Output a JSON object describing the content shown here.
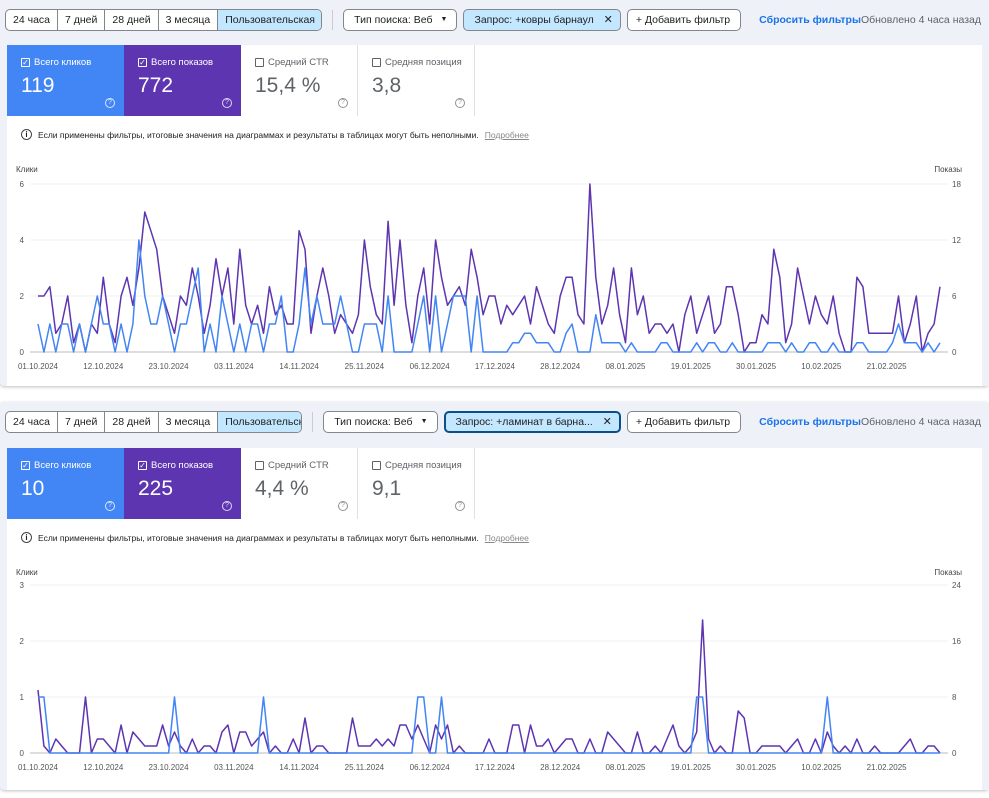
{
  "colors": {
    "clicks": "#4285f4",
    "impressions": "#5e35b1",
    "selected_chip": "#c2e7ff"
  },
  "panels": [
    {
      "date_ranges": [
        "24 часа",
        "7 дней",
        "28 дней",
        "3 месяца"
      ],
      "custom_range": "Пользовательская",
      "search_type": "Тип поиска: Веб",
      "query_filter": "Запрос: +ковры барнаул",
      "add_filter": "Добавить фильтр",
      "reset_filters": "Сбросить фильтры",
      "updated": "Обновлено 4 часа назад",
      "metrics": [
        {
          "label": "Всего кликов",
          "value": "119",
          "checked": true
        },
        {
          "label": "Всего показов",
          "value": "772",
          "checked": true
        },
        {
          "label": "Средний CTR",
          "value": "15,4 %",
          "checked": false
        },
        {
          "label": "Средняя позиция",
          "value": "3,8",
          "checked": false
        }
      ],
      "info": "Если применены фильтры, итоговые значения на диаграммах и результаты в таблицах могут быть неполными.",
      "info_link": "Подробнее",
      "chart_data": {
        "type": "line",
        "x_ticks": [
          "01.10.2024",
          "12.10.2024",
          "23.10.2024",
          "03.11.2024",
          "14.11.2024",
          "25.11.2024",
          "06.12.2024",
          "17.12.2024",
          "28.12.2024",
          "08.01.2025",
          "19.01.2025",
          "30.01.2025",
          "10.02.2025",
          "21.02.2025"
        ],
        "ylabel_left": "Клики",
        "ylabel_right": "Показы",
        "y_left_ticks": [
          0,
          2,
          4,
          6
        ],
        "y_right_ticks": [
          0,
          6,
          12,
          18
        ],
        "ylim_left": [
          0,
          6
        ],
        "ylim_right": [
          0,
          18
        ],
        "series": [
          {
            "name": "Клики",
            "axis": "left",
            "values": [
              1,
              0,
              1,
              0,
              1,
              1,
              0,
              1,
              0,
              1,
              2,
              1,
              1,
              0,
              1,
              0,
              1,
              4,
              2,
              1,
              1,
              2,
              1,
              0,
              1,
              1,
              2,
              3,
              0,
              1,
              0,
              2,
              1,
              0,
              1,
              0,
              1,
              1,
              0,
              1,
              1,
              2,
              0,
              0,
              1,
              3,
              1,
              2,
              1,
              1,
              1,
              2,
              1,
              0,
              0,
              1,
              1,
              1,
              0,
              2,
              0,
              0,
              0,
              0,
              1,
              2,
              0,
              2,
              0,
              1,
              2,
              2,
              2,
              0,
              2,
              0,
              0,
              0,
              0,
              0,
              0.33,
              0.33,
              0.67,
              0.67,
              0.33,
              0.33,
              0.33,
              0,
              0,
              0.67,
              1,
              0,
              0,
              0,
              1.33,
              0.33,
              0.33,
              0.33,
              0.33,
              0,
              0.33,
              0,
              0,
              0,
              0,
              0.33,
              0.33,
              0,
              0,
              0,
              0,
              0.33,
              0,
              0.33,
              0.33,
              0,
              0,
              0.33,
              0,
              0,
              0,
              0,
              0,
              0.33,
              0.33,
              0.33,
              0,
              0.33,
              0,
              0,
              0.33,
              0.33,
              0,
              0,
              0.33,
              0,
              0,
              0,
              0.33,
              0.33,
              0,
              0,
              0,
              0,
              0.33,
              1,
              0.33,
              0.33,
              0.33,
              0,
              0.33,
              0,
              0.33
            ]
          },
          {
            "name": "Показы",
            "axis": "right",
            "values": [
              6,
              6,
              7,
              2,
              3,
              6,
              1,
              3,
              0,
              3,
              2,
              8,
              3,
              1,
              6,
              8,
              5,
              9,
              15,
              13,
              11,
              6,
              4,
              2,
              6,
              5,
              9,
              6,
              2,
              5,
              10,
              6,
              9,
              3,
              11,
              5,
              3,
              5,
              2,
              7,
              4,
              5,
              3,
              3,
              13,
              11,
              2,
              6,
              9,
              6,
              2,
              4,
              3,
              2,
              4,
              12,
              7,
              4,
              3,
              14,
              5,
              12,
              5,
              1,
              6,
              9,
              3,
              12,
              8,
              5,
              6,
              7,
              5,
              11,
              8,
              4,
              6,
              6,
              3,
              5,
              4,
              5,
              6,
              3,
              7,
              5,
              3,
              2,
              6,
              8,
              8,
              4,
              3,
              18,
              8,
              3,
              5,
              9,
              4,
              1,
              9,
              4,
              6,
              2,
              3,
              3,
              2,
              3,
              0,
              4,
              6,
              2,
              4,
              6,
              2,
              3,
              7,
              7,
              4,
              0,
              1,
              1,
              4,
              3,
              11,
              8,
              1,
              3,
              9,
              6,
              3,
              6,
              4,
              3,
              6,
              2,
              0,
              0,
              8,
              7,
              2,
              2,
              2,
              2,
              2,
              6,
              1,
              3,
              6,
              0,
              2,
              3,
              7
            ]
          }
        ]
      }
    },
    {
      "date_ranges": [
        "24 часа",
        "7 дней",
        "28 дней",
        "3 месяца"
      ],
      "custom_range": "Пользовательская",
      "search_type": "Тип поиска: Веб",
      "query_filter": "Запрос: +ламинат в барна...",
      "add_filter": "Добавить фильтр",
      "reset_filters": "Сбросить фильтры",
      "updated": "Обновлено 4 часа назад",
      "metrics": [
        {
          "label": "Всего кликов",
          "value": "10",
          "checked": true
        },
        {
          "label": "Всего показов",
          "value": "225",
          "checked": true
        },
        {
          "label": "Средний CTR",
          "value": "4,4 %",
          "checked": false
        },
        {
          "label": "Средняя позиция",
          "value": "9,1",
          "checked": false
        }
      ],
      "info": "Если применены фильтры, итоговые значения на диаграммах и результаты в таблицах могут быть неполными.",
      "info_link": "Подробнее",
      "chart_data": {
        "type": "line",
        "x_ticks": [
          "01.10.2024",
          "12.10.2024",
          "23.10.2024",
          "03.11.2024",
          "14.11.2024",
          "25.11.2024",
          "06.12.2024",
          "17.12.2024",
          "28.12.2024",
          "08.01.2025",
          "19.01.2025",
          "30.01.2025",
          "10.02.2025",
          "21.02.2025"
        ],
        "ylabel_left": "Клики",
        "ylabel_right": "Показы",
        "y_left_ticks": [
          0,
          1,
          2,
          3
        ],
        "y_right_ticks": [
          0,
          8,
          16,
          24
        ],
        "ylim_left": [
          0,
          3
        ],
        "ylim_right": [
          0,
          24
        ],
        "series": [
          {
            "name": "Клики",
            "axis": "left",
            "values": [
              1,
              1,
              0,
              0,
              0,
              0,
              0,
              0,
              0,
              0,
              0,
              0,
              0,
              0,
              0,
              0,
              0,
              0,
              0,
              0,
              0,
              0,
              0,
              1,
              0,
              0,
              0,
              0,
              0,
              0,
              0,
              0,
              0,
              0,
              0,
              0,
              0,
              0,
              1,
              0,
              0,
              0,
              0,
              0,
              0,
              0,
              0,
              0,
              0,
              0,
              0,
              0,
              0,
              0,
              0,
              0,
              0,
              0,
              0,
              0,
              0,
              0,
              0,
              0,
              1,
              1,
              0,
              0,
              1,
              0,
              0,
              0,
              0,
              0,
              0,
              0,
              0,
              0,
              0,
              0,
              0,
              0,
              0,
              0,
              0,
              0,
              0,
              0,
              0,
              0,
              0,
              0,
              0,
              0,
              0,
              0,
              0,
              0,
              0,
              0,
              0,
              0,
              0,
              0,
              0,
              0,
              0,
              0,
              0,
              0,
              0,
              1,
              1,
              0,
              0,
              0,
              0,
              0,
              0,
              0,
              0,
              0,
              0,
              0,
              0,
              0,
              0,
              0,
              0,
              0,
              0,
              0,
              0,
              1,
              0,
              0,
              0,
              0,
              0,
              0,
              0,
              0,
              0,
              0,
              0,
              0,
              0,
              0,
              0,
              0,
              0,
              0,
              0
            ]
          },
          {
            "name": "Показы",
            "axis": "right",
            "values": [
              9,
              1,
              0,
              2,
              1,
              0,
              0,
              0,
              8,
              0,
              2,
              2,
              1,
              0,
              4,
              0,
              3,
              2,
              1,
              1,
              1,
              4,
              1,
              3,
              1,
              0,
              2,
              0,
              1,
              1,
              0,
              3,
              4,
              0,
              3,
              3,
              1,
              2,
              3,
              0,
              1,
              0,
              0,
              2,
              0,
              5,
              0,
              1,
              1,
              0,
              0,
              0,
              0,
              5,
              1,
              1,
              1,
              2,
              1,
              2,
              1,
              4,
              4,
              2,
              4,
              2,
              0,
              4,
              2,
              4,
              0,
              1,
              0,
              0,
              0,
              0,
              2,
              0,
              0,
              0,
              4,
              4,
              0,
              4,
              1,
              1,
              2,
              0,
              1,
              2,
              2,
              0,
              0,
              2,
              0,
              0,
              3,
              2,
              1,
              0,
              0,
              3,
              0,
              0,
              1,
              0,
              2,
              4,
              1,
              0,
              1,
              3,
              19,
              2,
              0,
              1,
              0,
              0,
              6,
              5,
              0,
              0,
              1,
              1,
              1,
              1,
              0,
              1,
              2,
              0,
              0,
              2,
              0,
              3,
              1,
              0,
              1,
              0,
              2,
              0,
              0,
              1,
              0,
              0,
              0,
              0,
              1,
              2,
              0,
              0,
              1,
              1,
              0
            ]
          }
        ]
      }
    }
  ]
}
